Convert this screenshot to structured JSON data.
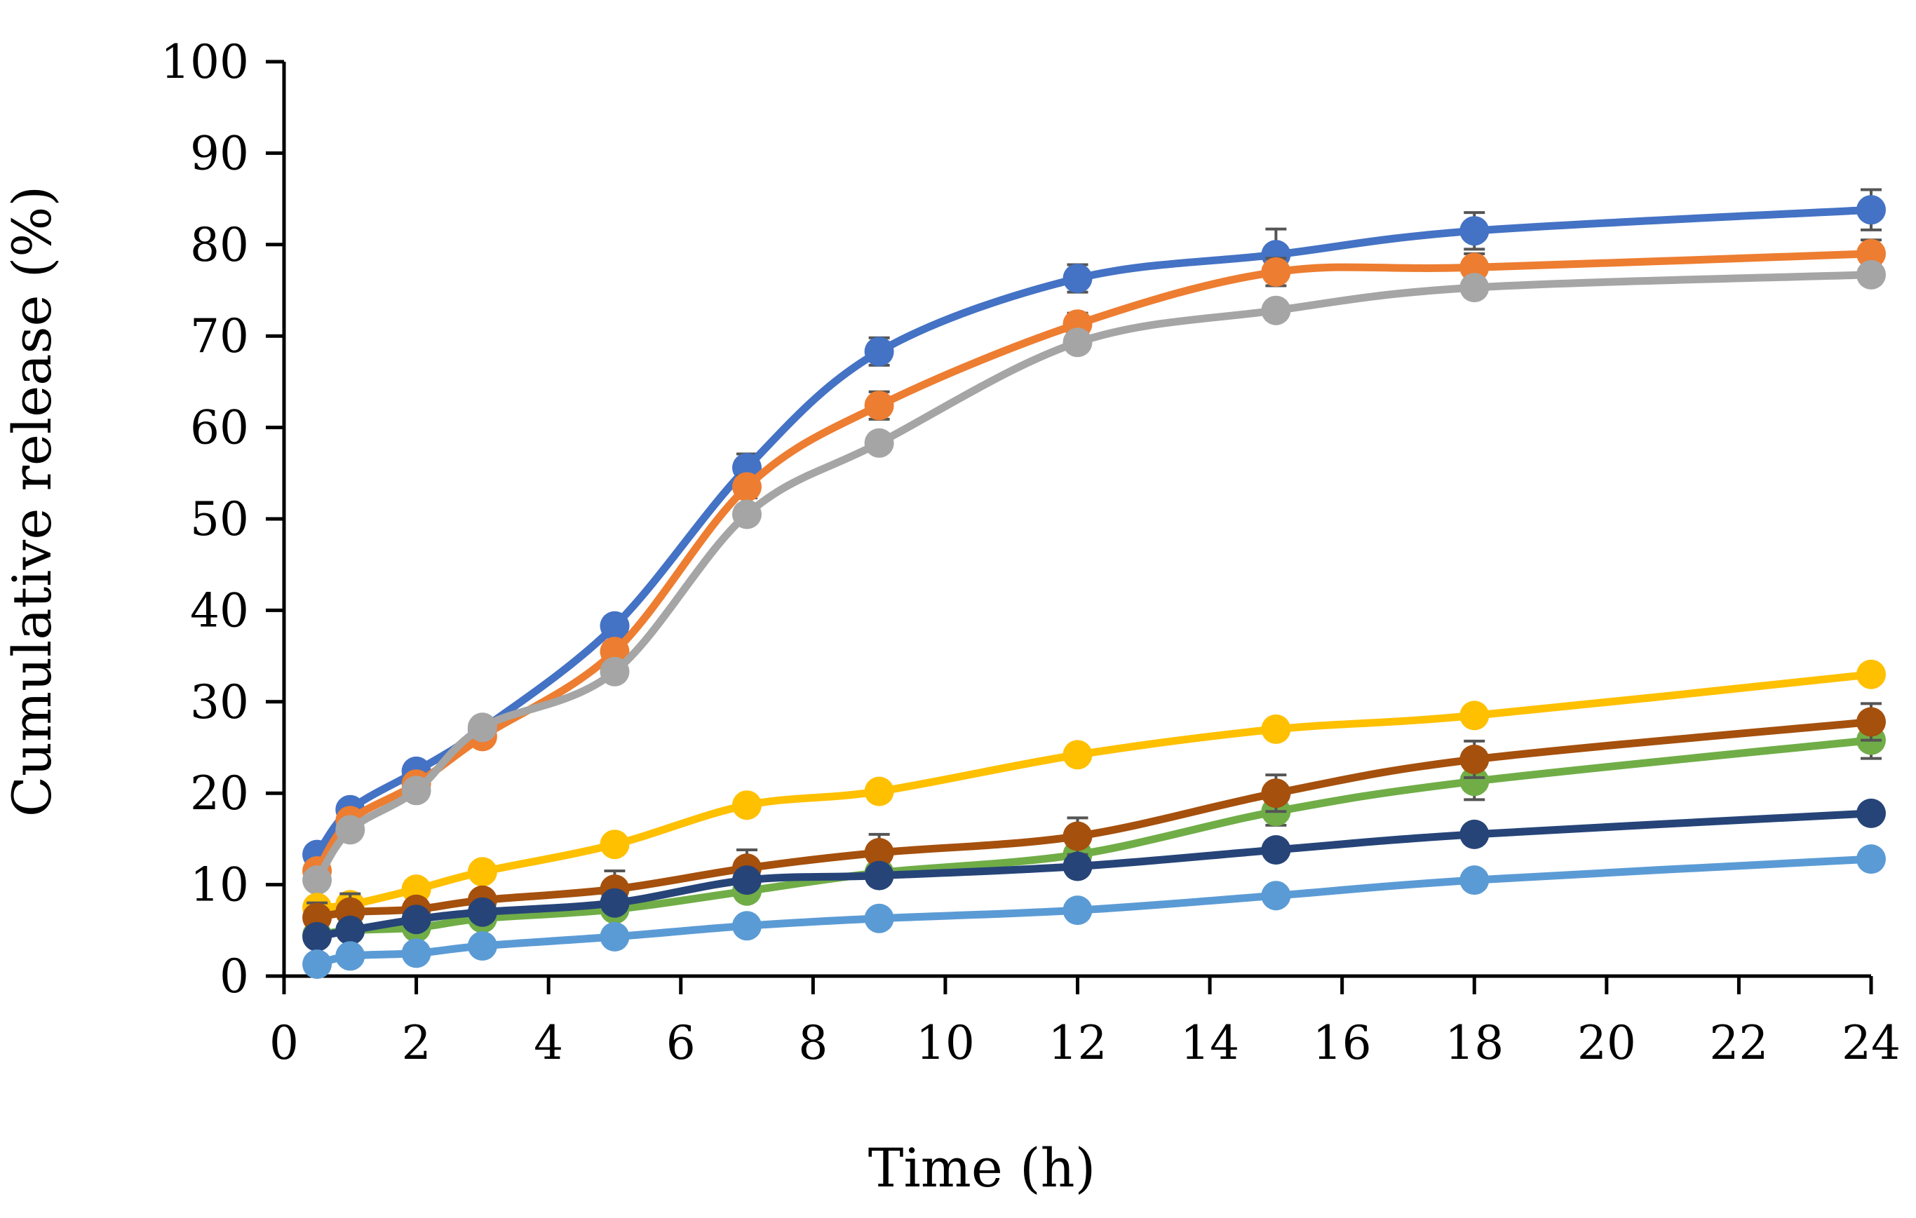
{
  "chart_data": {
    "type": "line",
    "xlabel": "Time (h)",
    "ylabel": "Cumulative release (%)",
    "xlim": [
      0,
      24
    ],
    "ylim": [
      0,
      100
    ],
    "x_ticks": [
      "0",
      "2",
      "4",
      "6",
      "8",
      "10",
      "12",
      "14",
      "16",
      "18",
      "20",
      "22",
      "24"
    ],
    "y_ticks": [
      "0",
      "10",
      "20",
      "30",
      "40",
      "50",
      "60",
      "70",
      "80",
      "90",
      "100"
    ],
    "grid": false,
    "legend": "none",
    "smooth": true,
    "x": [
      0.5,
      1,
      2,
      3,
      5,
      7,
      9,
      12,
      15,
      18,
      24
    ],
    "series": [
      {
        "color": "#4472C4",
        "values": [
          13.3,
          18.2,
          22.4,
          27.0,
          38.3,
          55.6,
          68.3,
          76.3,
          78.9,
          81.5,
          83.8
        ],
        "errors": [
          0.8,
          0.8,
          0.8,
          0.8,
          1.0,
          1.5,
          1.5,
          1.5,
          2.8,
          2.0,
          2.2
        ]
      },
      {
        "color": "#ED7D31",
        "values": [
          11.5,
          17.0,
          21.0,
          26.2,
          35.5,
          53.5,
          62.4,
          71.3,
          77.0,
          77.5,
          79.0
        ],
        "errors": [
          0.8,
          0.8,
          0.8,
          0.8,
          1.0,
          1.2,
          1.5,
          1.2,
          1.5,
          1.5,
          1.5
        ]
      },
      {
        "color": "#A5A5A5",
        "values": [
          10.5,
          16.0,
          20.3,
          27.2,
          33.3,
          50.5,
          58.3,
          69.3,
          72.8,
          75.3,
          76.7
        ],
        "errors": [
          0.8,
          0.8,
          0.8,
          0.8,
          1.0,
          1.0,
          1.0,
          1.0,
          1.0,
          1.0,
          1.0
        ]
      },
      {
        "color": "#FFC000",
        "values": [
          7.5,
          7.8,
          9.5,
          11.4,
          14.4,
          18.7,
          20.2,
          24.2,
          27.0,
          28.5,
          33.0
        ],
        "errors": [
          0.6,
          0.6,
          0.6,
          0.6,
          0.8,
          0.8,
          0.8,
          0.8,
          0.8,
          0.8,
          0.8
        ]
      },
      {
        "color": "#70AD47",
        "values": [
          4.5,
          5.0,
          5.3,
          6.3,
          7.3,
          9.3,
          11.3,
          13.3,
          18.0,
          21.3,
          25.8
        ],
        "errors": [
          0.6,
          0.6,
          0.6,
          0.8,
          0.8,
          1.0,
          1.2,
          1.2,
          1.5,
          2.0,
          2.0
        ]
      },
      {
        "color": "#A5500D",
        "values": [
          6.4,
          7.0,
          7.3,
          8.3,
          9.5,
          11.8,
          13.5,
          15.3,
          20.0,
          23.7,
          27.8
        ],
        "errors": [
          1.6,
          2.0,
          0.8,
          0.8,
          2.0,
          2.0,
          2.0,
          2.0,
          2.0,
          2.0,
          2.0
        ]
      },
      {
        "color": "#264478",
        "values": [
          4.3,
          5.0,
          6.2,
          7.0,
          8.0,
          10.5,
          11.0,
          12.0,
          13.8,
          15.5,
          17.8
        ],
        "errors": [
          0.6,
          0.6,
          0.6,
          0.6,
          0.6,
          0.8,
          0.8,
          0.8,
          0.8,
          0.8,
          0.8
        ]
      },
      {
        "color": "#5B9BD5",
        "values": [
          1.3,
          2.2,
          2.5,
          3.3,
          4.3,
          5.5,
          6.3,
          7.2,
          8.8,
          10.5,
          12.8
        ],
        "errors": [
          0.4,
          0.4,
          0.4,
          0.4,
          0.4,
          0.4,
          0.4,
          0.4,
          0.4,
          0.4,
          0.4
        ]
      }
    ]
  }
}
